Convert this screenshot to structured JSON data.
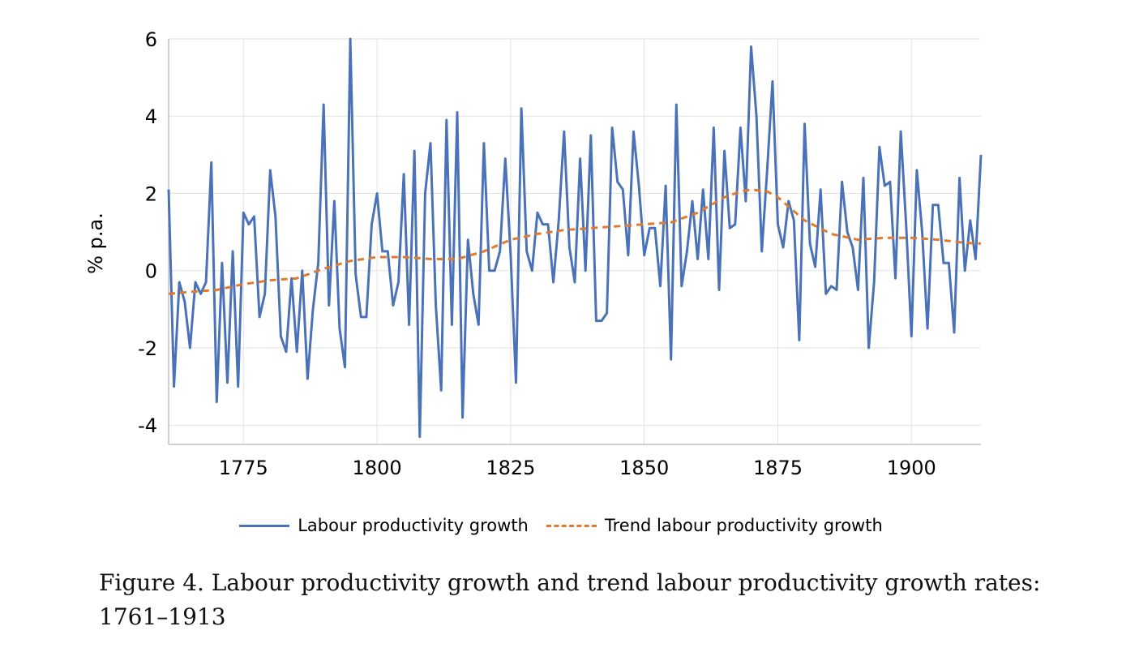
{
  "chart_data": {
    "type": "line",
    "ylabel": "% p.a.",
    "xlabel": "",
    "xlim": [
      1761,
      1913
    ],
    "ylim": [
      -4.5,
      6
    ],
    "x_ticks": [
      1775,
      1800,
      1825,
      1850,
      1875,
      1900
    ],
    "y_ticks": [
      -4,
      -2,
      0,
      2,
      4,
      6
    ],
    "grid": "on",
    "legend_position": "bottom",
    "series": [
      {
        "name": "Labour productivity growth",
        "style": "solid",
        "color": "#4a72b8",
        "x": [
          1761,
          1762,
          1763,
          1764,
          1765,
          1766,
          1767,
          1768,
          1769,
          1770,
          1771,
          1772,
          1773,
          1774,
          1775,
          1776,
          1777,
          1778,
          1779,
          1780,
          1781,
          1782,
          1783,
          1784,
          1785,
          1786,
          1787,
          1788,
          1789,
          1790,
          1791,
          1792,
          1793,
          1794,
          1795,
          1796,
          1797,
          1798,
          1799,
          1800,
          1801,
          1802,
          1803,
          1804,
          1805,
          1806,
          1807,
          1808,
          1809,
          1810,
          1811,
          1812,
          1813,
          1814,
          1815,
          1816,
          1817,
          1818,
          1819,
          1820,
          1821,
          1822,
          1823,
          1824,
          1825,
          1826,
          1827,
          1828,
          1829,
          1830,
          1831,
          1832,
          1833,
          1834,
          1835,
          1836,
          1837,
          1838,
          1839,
          1840,
          1841,
          1842,
          1843,
          1844,
          1845,
          1846,
          1847,
          1848,
          1849,
          1850,
          1851,
          1852,
          1853,
          1854,
          1855,
          1856,
          1857,
          1858,
          1859,
          1860,
          1861,
          1862,
          1863,
          1864,
          1865,
          1866,
          1867,
          1868,
          1869,
          1870,
          1871,
          1872,
          1873,
          1874,
          1875,
          1876,
          1877,
          1878,
          1879,
          1880,
          1881,
          1882,
          1883,
          1884,
          1885,
          1886,
          1887,
          1888,
          1889,
          1890,
          1891,
          1892,
          1893,
          1894,
          1895,
          1896,
          1897,
          1898,
          1899,
          1900,
          1901,
          1902,
          1903,
          1904,
          1905,
          1906,
          1907,
          1908,
          1909,
          1910,
          1911,
          1912,
          1913
        ],
        "values": [
          2.1,
          -3.0,
          -0.3,
          -0.8,
          -2.0,
          -0.3,
          -0.6,
          -0.3,
          2.8,
          -3.4,
          0.2,
          -2.9,
          0.5,
          -3.0,
          1.5,
          1.2,
          1.4,
          -1.2,
          -0.6,
          2.6,
          1.4,
          -1.7,
          -2.1,
          -0.2,
          -2.1,
          0.0,
          -2.8,
          -1.0,
          0.2,
          4.3,
          -0.9,
          1.8,
          -1.5,
          -2.5,
          6.0,
          -0.1,
          -1.2,
          -1.2,
          1.2,
          2.0,
          0.5,
          0.5,
          -0.9,
          -0.3,
          2.5,
          -1.4,
          3.1,
          -4.3,
          2.0,
          3.3,
          -0.9,
          -3.1,
          3.9,
          -1.4,
          4.1,
          -3.8,
          0.8,
          -0.6,
          -1.4,
          3.3,
          0.0,
          0.0,
          0.5,
          2.9,
          0.4,
          -2.9,
          4.2,
          0.5,
          0.0,
          1.5,
          1.2,
          1.2,
          -0.3,
          1.3,
          3.6,
          0.6,
          -0.3,
          2.9,
          0.0,
          3.5,
          -1.3,
          -1.3,
          -1.1,
          3.7,
          2.3,
          2.1,
          0.4,
          3.6,
          2.2,
          0.4,
          1.1,
          1.1,
          -0.4,
          2.2,
          -2.3,
          4.3,
          -0.4,
          0.5,
          1.8,
          0.3,
          2.1,
          0.3,
          3.7,
          -0.5,
          3.1,
          1.1,
          1.2,
          3.7,
          1.8,
          5.8,
          4.0,
          0.5,
          2.6,
          4.9,
          1.2,
          0.6,
          1.8,
          1.3,
          -1.8,
          3.8,
          0.7,
          0.1,
          2.1,
          -0.6,
          -0.4,
          -0.5,
          2.3,
          1.0,
          0.6,
          -0.5,
          2.4,
          -2.0,
          -0.3,
          3.2,
          2.2,
          2.3,
          -0.2,
          3.6,
          1.2,
          -1.7,
          2.6,
          1.0,
          -1.5,
          1.7,
          1.7,
          0.2,
          0.2,
          -1.6,
          2.4,
          0.0,
          1.3,
          0.3,
          3.0
        ]
      },
      {
        "name": "Trend labour productivity growth",
        "style": "dashed",
        "color": "#e07a2f",
        "x": [
          1761,
          1765,
          1770,
          1775,
          1780,
          1785,
          1790,
          1795,
          1800,
          1805,
          1810,
          1815,
          1820,
          1825,
          1830,
          1835,
          1840,
          1845,
          1850,
          1855,
          1860,
          1865,
          1868,
          1870,
          1873,
          1875,
          1880,
          1885,
          1890,
          1895,
          1900,
          1905,
          1910,
          1913
        ],
        "values": [
          -0.6,
          -0.55,
          -0.5,
          -0.35,
          -0.25,
          -0.2,
          0.05,
          0.25,
          0.35,
          0.35,
          0.3,
          0.3,
          0.5,
          0.8,
          0.95,
          1.05,
          1.1,
          1.15,
          1.2,
          1.25,
          1.5,
          1.9,
          2.05,
          2.1,
          2.05,
          1.9,
          1.3,
          0.95,
          0.8,
          0.85,
          0.85,
          0.8,
          0.72,
          0.7
        ]
      }
    ]
  },
  "caption": {
    "line1": "Figure 4. Labour productivity growth and trend labour productivity growth rates:",
    "line2": "1761–1913"
  }
}
